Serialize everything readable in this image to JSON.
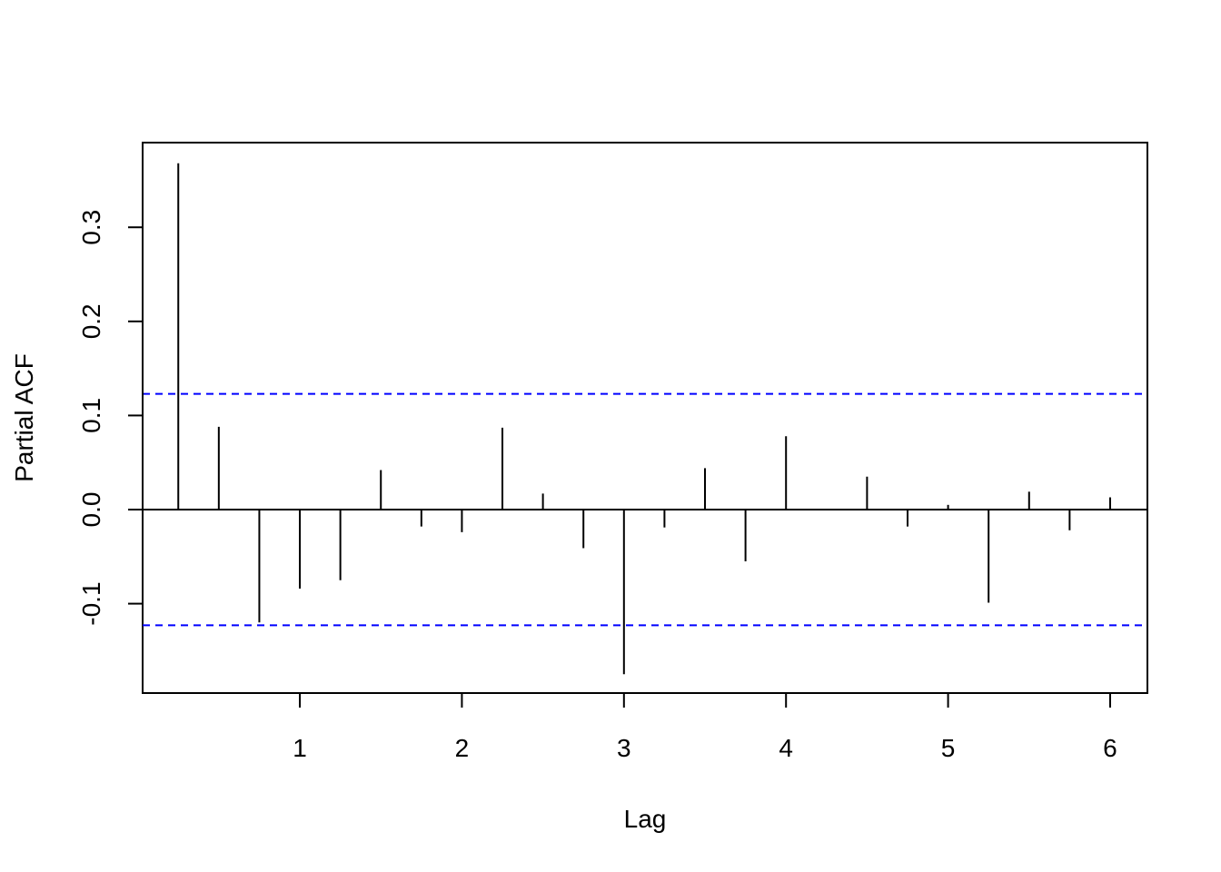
{
  "chart_data": {
    "type": "bar",
    "xlabel": "Lag",
    "ylabel": "Partial ACF",
    "xlim": [
      0.03,
      6.23
    ],
    "ylim": [
      -0.195,
      0.39
    ],
    "x_ticks": [
      1,
      2,
      3,
      4,
      5,
      6
    ],
    "x_tick_labels": [
      "1",
      "2",
      "3",
      "4",
      "5",
      "6"
    ],
    "y_ticks": [
      -0.1,
      0.0,
      0.1,
      0.2,
      0.3
    ],
    "y_tick_labels": [
      "-0.1",
      "0.0",
      "0.1",
      "0.2",
      "0.3"
    ],
    "confidence_bounds": [
      0.123,
      -0.123
    ],
    "bound_color": "#0000ff",
    "bar_color": "#000000",
    "grid": false,
    "lags": [
      0.25,
      0.5,
      0.75,
      1.0,
      1.25,
      1.5,
      1.75,
      2.0,
      2.25,
      2.5,
      2.75,
      3.0,
      3.25,
      3.5,
      3.75,
      4.0,
      4.25,
      4.5,
      4.75,
      5.0,
      5.25,
      5.5,
      5.75,
      6.0
    ],
    "values": [
      0.368,
      0.088,
      -0.12,
      -0.084,
      -0.075,
      0.042,
      -0.018,
      -0.024,
      0.087,
      0.017,
      -0.041,
      -0.175,
      -0.019,
      0.044,
      -0.055,
      0.078,
      0.0,
      0.035,
      -0.018,
      0.005,
      -0.099,
      0.019,
      -0.022,
      0.013
    ]
  }
}
